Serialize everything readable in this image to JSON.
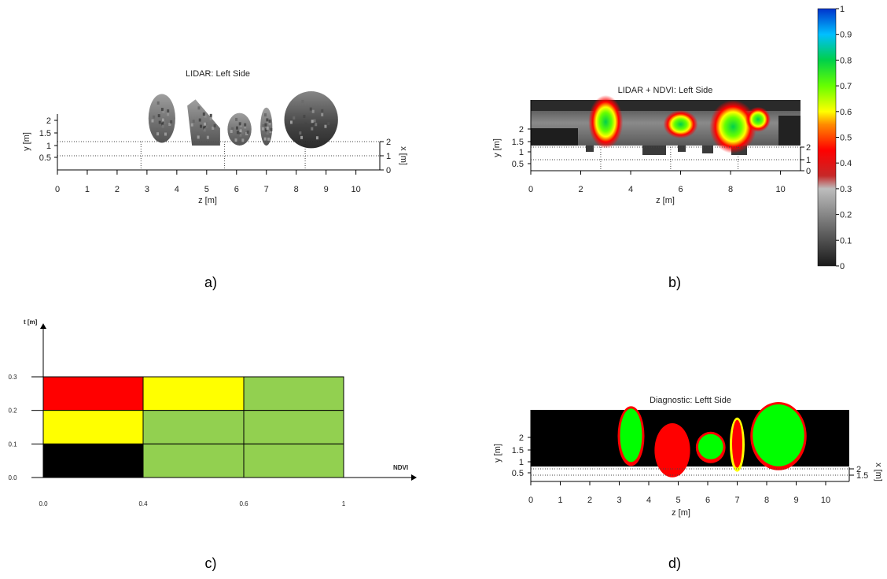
{
  "panels": [
    {
      "id": "a",
      "caption": "a)",
      "chart_data": {
        "type": "scatter",
        "title": "LIDAR: Left Side",
        "xlabel": "z [m]",
        "ylabel": "y [m]",
        "depth_label": "x [m]",
        "x_ticks": [
          "0",
          "1",
          "2",
          "3",
          "4",
          "5",
          "6",
          "7",
          "8",
          "9",
          "10"
        ],
        "y_ticks": [
          "0.5",
          "1",
          "1.5",
          "2"
        ],
        "depth_ticks": [
          "0",
          "1",
          "2"
        ],
        "xlim": [
          0,
          10.8
        ],
        "ylim": [
          0,
          2.5
        ],
        "grid": true,
        "colormap": "grayscale",
        "clusters": [
          {
            "z": 3.5,
            "y_min": 1.0,
            "y_max": 2.8,
            "width": 0.9
          },
          {
            "z": 4.9,
            "y_min": 0.9,
            "y_max": 2.6,
            "width": 1.1
          },
          {
            "z": 6.1,
            "y_min": 0.9,
            "y_max": 2.1,
            "width": 0.8
          },
          {
            "z": 7.0,
            "y_min": 0.9,
            "y_max": 2.3,
            "width": 0.4
          },
          {
            "z": 8.5,
            "y_min": 0.8,
            "y_max": 2.9,
            "width": 1.8
          }
        ]
      }
    },
    {
      "id": "b",
      "caption": "b)",
      "chart_data": {
        "type": "heatmap",
        "title": "LIDAR + NDVI: Left Side",
        "xlabel": "z [m]",
        "ylabel": "y [m]",
        "depth_label": "x [m]",
        "x_ticks": [
          "0",
          "2",
          "4",
          "6",
          "8",
          "10"
        ],
        "y_ticks": [
          "0.5",
          "1",
          "1.5",
          "2"
        ],
        "depth_ticks": [
          "0",
          "1",
          "2"
        ],
        "xlim": [
          0,
          10.8
        ],
        "ylim": [
          0,
          2.9
        ],
        "grid": true,
        "hotspots": [
          {
            "z": 3.0,
            "y": 2.0,
            "ndvi": 0.75
          },
          {
            "z": 6.0,
            "y": 1.9,
            "ndvi": 0.6
          },
          {
            "z": 8.1,
            "y": 1.8,
            "ndvi": 0.75
          },
          {
            "z": 9.1,
            "y": 2.1,
            "ndvi": 0.5
          }
        ],
        "colorbar": {
          "ticks": [
            "0",
            "0.1",
            "0.2",
            "0.3",
            "0.4",
            "0.5",
            "0.6",
            "0.7",
            "0.8",
            "0.9",
            "1"
          ],
          "range": [
            0,
            1
          ],
          "stops": [
            {
              "v": 0.0,
              "color": "#1a1a1a"
            },
            {
              "v": 0.3,
              "color": "#bdbdbd"
            },
            {
              "v": 0.35,
              "color": "#c62828"
            },
            {
              "v": 0.45,
              "color": "#ff0000"
            },
            {
              "v": 0.55,
              "color": "#ff8c00"
            },
            {
              "v": 0.6,
              "color": "#ffff00"
            },
            {
              "v": 0.7,
              "color": "#66ff00"
            },
            {
              "v": 0.8,
              "color": "#00d04a"
            },
            {
              "v": 0.9,
              "color": "#00bfff"
            },
            {
              "v": 1.0,
              "color": "#0033cc"
            }
          ]
        }
      }
    },
    {
      "id": "c",
      "caption": "c)",
      "chart_data": {
        "type": "table",
        "xlabel": "NDVI",
        "ylabel": "t [m]",
        "x_ticks": [
          "0.0",
          "0.4",
          "0.6",
          "1"
        ],
        "x_tick_values": [
          0,
          0.4,
          0.6,
          1
        ],
        "y_ticks": [
          "0.0",
          "0.1",
          "0.2",
          "0.3"
        ],
        "y_tick_values": [
          0,
          0.1,
          0.2,
          0.3
        ],
        "cells": [
          {
            "x0": 0.0,
            "x1": 0.4,
            "y0": 0.2,
            "y1": 0.3,
            "color": "#ff0000"
          },
          {
            "x0": 0.4,
            "x1": 0.6,
            "y0": 0.2,
            "y1": 0.3,
            "color": "#ffff00"
          },
          {
            "x0": 0.6,
            "x1": 1.0,
            "y0": 0.2,
            "y1": 0.3,
            "color": "#92d050"
          },
          {
            "x0": 0.0,
            "x1": 0.4,
            "y0": 0.1,
            "y1": 0.2,
            "color": "#ffff00"
          },
          {
            "x0": 0.4,
            "x1": 0.6,
            "y0": 0.1,
            "y1": 0.2,
            "color": "#92d050"
          },
          {
            "x0": 0.6,
            "x1": 1.0,
            "y0": 0.1,
            "y1": 0.2,
            "color": "#92d050"
          },
          {
            "x0": 0.0,
            "x1": 0.4,
            "y0": 0.0,
            "y1": 0.1,
            "color": "#000000"
          },
          {
            "x0": 0.4,
            "x1": 0.6,
            "y0": 0.0,
            "y1": 0.1,
            "color": "#92d050"
          },
          {
            "x0": 0.6,
            "x1": 1.0,
            "y0": 0.0,
            "y1": 0.1,
            "color": "#92d050"
          }
        ]
      }
    },
    {
      "id": "d",
      "caption": "d)",
      "chart_data": {
        "type": "heatmap",
        "title": "Diagnostic: Leftt Side",
        "xlabel": "z [m]",
        "ylabel": "y [m]",
        "depth_label": "x [m]",
        "x_ticks": [
          "0",
          "1",
          "2",
          "3",
          "4",
          "5",
          "6",
          "7",
          "8",
          "9",
          "10"
        ],
        "y_ticks": [
          "0.5",
          "1",
          "1.5",
          "2"
        ],
        "depth_ticks": [
          "1.5",
          "2"
        ],
        "xlim": [
          0,
          10.8
        ],
        "ylim": [
          0,
          2.5
        ],
        "grid": true,
        "background": "#000000",
        "blobs": [
          {
            "z": 3.4,
            "y": 1.6,
            "w": 0.8,
            "h": 2.0,
            "fill": "#00ff00",
            "edge": "#ff0000"
          },
          {
            "z": 4.8,
            "y": 1.1,
            "w": 1.1,
            "h": 1.8,
            "fill": "#ff0000",
            "edge": "#ff0000"
          },
          {
            "z": 6.1,
            "y": 1.2,
            "w": 0.9,
            "h": 1.0,
            "fill": "#00ff00",
            "edge": "#ff0000"
          },
          {
            "z": 7.0,
            "y": 1.3,
            "w": 0.4,
            "h": 1.8,
            "fill": "#ff0000",
            "edge": "#ffff00"
          },
          {
            "z": 8.4,
            "y": 1.6,
            "w": 1.8,
            "h": 2.3,
            "fill": "#00ff00",
            "edge": "#ff0000"
          }
        ]
      }
    }
  ]
}
